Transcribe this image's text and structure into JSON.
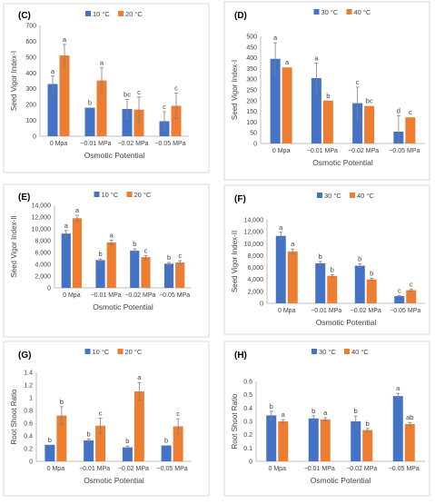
{
  "colors": {
    "series_a": "#4472C4",
    "series_b": "#ED7D31",
    "axis": "#bfbfbf",
    "text": "#404040",
    "panel_border": "#d9d9d9"
  },
  "chart_data": [
    {
      "type": "bar",
      "panel_label": "(C)",
      "ylabel": "Seed Vigor Index-I",
      "xlabel": "Osmotic Potential",
      "categories": [
        "0 Mpa",
        "−0.01 MPa",
        "−0.02 MPa",
        "−0.05 MPa"
      ],
      "ylim": [
        0,
        700
      ],
      "yticks": [
        "0",
        "100",
        "200",
        "300",
        "400",
        "500",
        "600",
        "700"
      ],
      "ytick_values": [
        0,
        100,
        200,
        300,
        400,
        500,
        600,
        700
      ],
      "legend_position": "top-center",
      "grid": false,
      "series": [
        {
          "name": "10 °C",
          "color": "#4472C4",
          "values": [
            330,
            180,
            172,
            95
          ],
          "errors": [
            50,
            0,
            60,
            60
          ],
          "letters": [
            "a",
            "b",
            "bc",
            "c"
          ]
        },
        {
          "name": "20 °C",
          "color": "#ED7D31",
          "values": [
            510,
            352,
            168,
            192
          ],
          "errors": [
            70,
            80,
            80,
            80
          ],
          "letters": [
            "a",
            "a",
            "c",
            "c"
          ]
        }
      ]
    },
    {
      "type": "bar",
      "panel_label": "(D)",
      "ylabel": "Seed Vigor Index-I",
      "xlabel": "Osmotic Potential",
      "categories": [
        "0 Mpa",
        "−0.01 MPa",
        "−0.02 MPa",
        "−0.05 MPa"
      ],
      "ylim": [
        0,
        500
      ],
      "yticks": [
        "0",
        "50",
        "100",
        "150",
        "200",
        "250",
        "300",
        "350",
        "400",
        "450",
        "500"
      ],
      "ytick_values": [
        0,
        50,
        100,
        150,
        200,
        250,
        300,
        350,
        400,
        450,
        500
      ],
      "legend_position": "top-center",
      "grid": false,
      "series": [
        {
          "name": "30 °C",
          "color": "#4472C4",
          "values": [
            395,
            305,
            188,
            55
          ],
          "errors": [
            75,
            70,
            75,
            75
          ],
          "letters": [
            "a",
            "a",
            "c",
            "d"
          ]
        },
        {
          "name": "40 °C",
          "color": "#ED7D31",
          "values": [
            355,
            200,
            175,
            122
          ],
          "errors": [
            0,
            0,
            0,
            0
          ],
          "letters": [
            "a",
            "b",
            "bc",
            "c"
          ]
        }
      ]
    },
    {
      "type": "bar",
      "panel_label": "(E)",
      "ylabel": "Seed Vigor Index-II",
      "xlabel": "Osmotic Potential",
      "categories": [
        "0 Mpa",
        "−0.01 MPa",
        "−0.02 MPa",
        "−0.05 MPa"
      ],
      "ylim": [
        0,
        14000
      ],
      "yticks": [
        "0",
        "2,000",
        "4,000",
        "6,000",
        "8,000",
        "10,000",
        "12,000",
        "14,000"
      ],
      "ytick_values": [
        0,
        2000,
        4000,
        6000,
        8000,
        10000,
        12000,
        14000
      ],
      "legend_position": "top-center",
      "grid": false,
      "series": [
        {
          "name": "10 °C",
          "color": "#4472C4",
          "values": [
            9200,
            4700,
            6300,
            4100
          ],
          "errors": [
            500,
            200,
            300,
            200
          ],
          "letters": [
            "a",
            "b",
            "b",
            "b"
          ]
        },
        {
          "name": "20 °C",
          "color": "#ED7D31",
          "values": [
            11800,
            7700,
            5200,
            4300
          ],
          "errors": [
            500,
            400,
            300,
            300
          ],
          "letters": [
            "a",
            "a",
            "c",
            "c"
          ]
        }
      ]
    },
    {
      "type": "bar",
      "panel_label": "(F)",
      "ylabel": "Seed Vigor Index-II",
      "xlabel": "Osmotic Potential",
      "categories": [
        "0 Mpa",
        "−0.01 MPa",
        "−0.02 MPa",
        "−0.05 MPa"
      ],
      "ylim": [
        0,
        14000
      ],
      "yticks": [
        "0",
        "2,000",
        "4,000",
        "6,000",
        "8,000",
        "10,000",
        "12,000",
        "14,000"
      ],
      "ytick_values": [
        0,
        2000,
        4000,
        6000,
        8000,
        10000,
        12000,
        14000
      ],
      "legend_position": "top-center",
      "grid": false,
      "series": [
        {
          "name": "30 °C",
          "color": "#4472C4",
          "values": [
            11300,
            6700,
            6300,
            1200
          ],
          "errors": [
            600,
            300,
            300,
            100
          ],
          "letters": [
            "a",
            "b",
            "b",
            "c"
          ]
        },
        {
          "name": "40 °C",
          "color": "#ED7D31",
          "values": [
            8700,
            4600,
            4000,
            2200
          ],
          "errors": [
            400,
            200,
            200,
            150
          ],
          "letters": [
            "a",
            "b",
            "b",
            "c"
          ]
        }
      ]
    },
    {
      "type": "bar",
      "panel_label": "(G)",
      "ylabel": "Root Shoot Ratio",
      "xlabel": "Osmotic Potential",
      "categories": [
        "0 Mpa",
        "−0.01 MPa",
        "−0.02 MPa",
        "−0.05 MPa"
      ],
      "ylim": [
        0,
        1.4
      ],
      "yticks": [
        "0",
        "0.2",
        "0.4",
        "0.6",
        "0.8",
        "1",
        "1.2",
        "1.4"
      ],
      "ytick_values": [
        0,
        0.2,
        0.4,
        0.6,
        0.8,
        1,
        1.2,
        1.4
      ],
      "legend_position": "top-center",
      "grid": false,
      "series": [
        {
          "name": "10 °C",
          "color": "#4472C4",
          "values": [
            0.26,
            0.33,
            0.22,
            0.25
          ],
          "errors": [
            0,
            0.02,
            0.02,
            0
          ],
          "letters": [
            "b",
            "b",
            "b",
            "b"
          ]
        },
        {
          "name": "20 °C",
          "color": "#ED7D31",
          "values": [
            0.72,
            0.56,
            1.1,
            0.55
          ],
          "errors": [
            0.14,
            0.12,
            0.14,
            0.12
          ],
          "letters": [
            "b",
            "c",
            "a",
            "c"
          ]
        }
      ]
    },
    {
      "type": "bar",
      "panel_label": "(H)",
      "ylabel": "Root Shoot Ratio",
      "xlabel": "Osmotic Potential",
      "categories": [
        "0 Mpa",
        "−0.01 MPa",
        "−0.02 MPa",
        "−0.05 MPa"
      ],
      "ylim": [
        0,
        0.6
      ],
      "yticks": [
        "0",
        "0.1",
        "0.2",
        "0.3",
        "0.4",
        "0.5",
        "0.6"
      ],
      "ytick_values": [
        0,
        0.1,
        0.2,
        0.3,
        0.4,
        0.5,
        0.6
      ],
      "legend_position": "top-center",
      "grid": false,
      "series": [
        {
          "name": "30 °C",
          "color": "#4472C4",
          "values": [
            0.345,
            0.322,
            0.3,
            0.49
          ],
          "errors": [
            0.03,
            0.02,
            0.04,
            0.02
          ],
          "letters": [
            "b",
            "b",
            "b",
            "a"
          ]
        },
        {
          "name": "40 °C",
          "color": "#ED7D31",
          "values": [
            0.3,
            0.315,
            0.235,
            0.28
          ],
          "errors": [
            0.012,
            0.012,
            0.012,
            0.012
          ],
          "letters": [
            "a",
            "a",
            "b",
            "ab"
          ]
        }
      ]
    }
  ]
}
